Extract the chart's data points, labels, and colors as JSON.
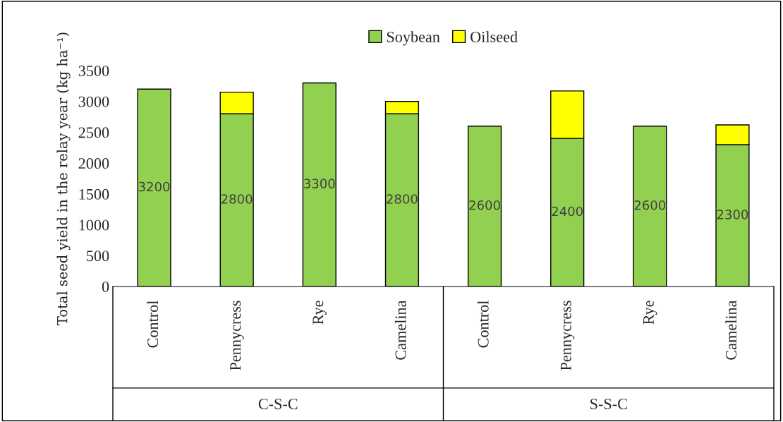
{
  "chart_data": {
    "type": "bar",
    "stacked": true,
    "ylabel": "Total seed yield in the relay year (kg ha⁻¹)",
    "categories": [
      "Control",
      "Pennycress",
      "Rye",
      "Camelina",
      "Control",
      "Pennycress",
      "Rye",
      "Camelina"
    ],
    "series": [
      {
        "name": "Soybean",
        "color": "#92d050",
        "values": [
          3200,
          2800,
          3300,
          2800,
          2600,
          2400,
          2600,
          2300
        ],
        "value_labels": [
          "3200",
          "2800",
          "3300",
          "2800",
          "2600",
          "2400",
          "2600",
          "2300"
        ]
      },
      {
        "name": "Oilseed",
        "color": "#ffff00",
        "values": [
          null,
          350,
          null,
          200,
          null,
          770,
          null,
          320
        ]
      }
    ],
    "ylim": [
      0,
      3500
    ],
    "yticks": [
      0,
      500,
      1000,
      1500,
      2000,
      2500,
      3000,
      3500
    ],
    "annotations": [
      "C-S-C",
      "S-S-C"
    ],
    "legend": "top",
    "grid": false
  }
}
